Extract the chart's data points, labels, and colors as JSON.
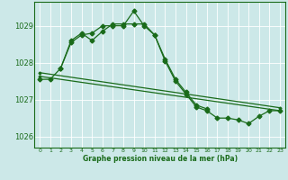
{
  "bg_color": "#cce8e8",
  "grid_color": "#aacccc",
  "grid_color2": "#ffffff",
  "line_color": "#1a6b1a",
  "xlim": [
    -0.5,
    23.5
  ],
  "ylim": [
    1025.7,
    1029.65
  ],
  "yticks": [
    1026,
    1027,
    1028,
    1029
  ],
  "xticks": [
    0,
    1,
    2,
    3,
    4,
    5,
    6,
    7,
    8,
    9,
    10,
    11,
    12,
    13,
    14,
    15,
    16,
    17,
    18,
    19,
    20,
    21,
    22,
    23
  ],
  "xlabel": "Graphe pression niveau de la mer (hPa)",
  "series1_x": [
    0,
    1,
    2,
    3,
    4,
    5,
    6,
    7,
    8,
    9,
    10,
    11,
    12,
    13,
    14,
    15,
    16,
    17,
    18,
    19,
    20,
    21,
    22,
    23
  ],
  "series1_y": [
    1027.55,
    1027.55,
    1027.85,
    1028.55,
    1028.75,
    1028.8,
    1029.0,
    1029.0,
    1029.0,
    1029.4,
    1029.0,
    1028.75,
    1028.05,
    1027.5,
    1027.15,
    1026.8,
    1026.7,
    1026.5,
    1026.5,
    1026.45,
    1026.35,
    1026.55,
    1026.7,
    1026.7
  ],
  "series2_x": [
    2,
    3,
    4,
    5,
    6,
    7,
    8,
    9,
    10,
    11,
    12,
    13,
    14,
    15,
    16
  ],
  "series2_y": [
    1027.85,
    1028.6,
    1028.8,
    1028.6,
    1028.85,
    1029.05,
    1029.05,
    1029.05,
    1029.05,
    1028.75,
    1028.1,
    1027.55,
    1027.2,
    1026.85,
    1026.75
  ],
  "trend1_x": [
    0,
    23
  ],
  "trend1_y": [
    1027.73,
    1026.78
  ],
  "trend2_x": [
    0,
    23
  ],
  "trend2_y": [
    1027.63,
    1026.7
  ],
  "marker": "D",
  "markersize": 2.5,
  "linewidth": 0.9
}
